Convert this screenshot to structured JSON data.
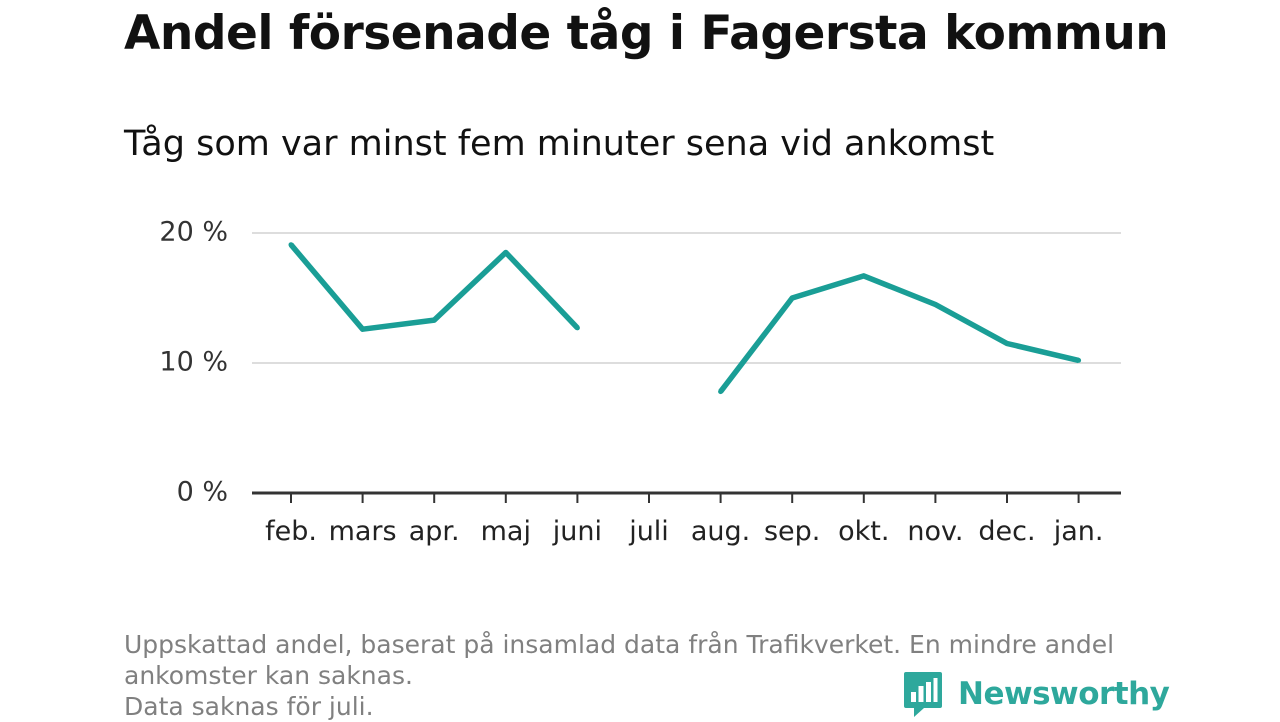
{
  "title": "Andel försenade tåg i Fagersta kommun",
  "subtitle": "Tåg som var minst fem minuter sena vid ankomst",
  "footnote": {
    "line1": "Uppskattad andel, baserat på insamlad data från Trafikverket. En mindre andel",
    "line2": "ankomster kan saknas.",
    "line3": "Data saknas för juli."
  },
  "logo": {
    "text": "Newsworthy",
    "icon": "newsworthy-logo-icon"
  },
  "colors": {
    "line": "#1a9e96",
    "grid": "#dddddd",
    "axis": "#333333",
    "footnote": "#808080",
    "brand": "#2ea89c"
  },
  "chart_data": {
    "type": "line",
    "categories": [
      "feb.",
      "mars",
      "apr.",
      "maj",
      "juni",
      "juli",
      "aug.",
      "sep.",
      "okt.",
      "nov.",
      "dec.",
      "jan."
    ],
    "series": [
      {
        "values": [
          19.1,
          12.6,
          13.3,
          18.5,
          12.7,
          null,
          7.8,
          15.0,
          16.7,
          14.5,
          11.5,
          10.2
        ]
      }
    ],
    "yticks": [
      0,
      10,
      20
    ],
    "ytick_labels": [
      "0 %",
      "10 %",
      "20 %"
    ],
    "ylim": [
      0,
      20
    ],
    "grid": true,
    "xlabel": "",
    "ylabel": ""
  }
}
